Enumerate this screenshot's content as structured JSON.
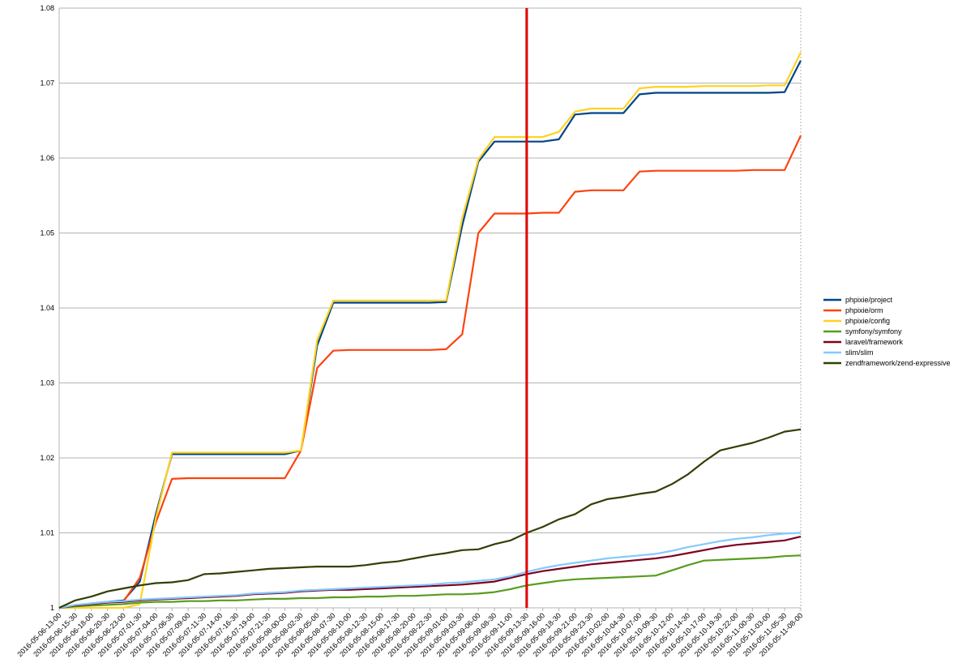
{
  "chart_data": {
    "type": "line",
    "categories": [
      "2016-05-06-13-00",
      "2016-05-06-15-30",
      "2016-05-06-18-00",
      "2016-05-06-20-30",
      "2016-05-06-23-00",
      "2016-05-07-01-30",
      "2016-05-07-04-00",
      "2016-05-07-06-30",
      "2016-05-07-09-00",
      "2016-05-07-11-30",
      "2016-05-07-14-00",
      "2016-05-07-16-30",
      "2016-05-07-19-00",
      "2016-05-07-21-30",
      "2016-05-08-00-00",
      "2016-05-08-02-30",
      "2016-05-08-05-00",
      "2016-05-08-07-30",
      "2016-05-08-10-00",
      "2016-05-08-12-30",
      "2016-05-08-15-00",
      "2016-05-08-17-30",
      "2016-05-08-20-00",
      "2016-05-08-22-30",
      "2016-05-09-01-00",
      "2016-05-09-03-30",
      "2016-05-09-06-00",
      "2016-05-09-08-30",
      "2016-05-09-11-00",
      "2016-05-09-13-30",
      "2016-05-09-16-00",
      "2016-05-09-18-30",
      "2016-05-09-21-00",
      "2016-05-09-23-30",
      "2016-05-10-02-00",
      "2016-05-10-04-30",
      "2016-05-10-07-00",
      "2016-05-10-09-30",
      "2016-05-10-12-00",
      "2016-05-10-14-30",
      "2016-05-10-17-00",
      "2016-05-10-19-30",
      "2016-05-10-22-00",
      "2016-05-11-00-30",
      "2016-05-11-03-00",
      "2016-05-11-05-30",
      "2016-05-11-08-00"
    ],
    "series": [
      {
        "name": "phpixie/project",
        "color": "#004586",
        "values": [
          1,
          1.0003,
          1.0006,
          1.0008,
          1.001,
          1.0035,
          1.0125,
          1.0205,
          1.0205,
          1.0205,
          1.0205,
          1.0205,
          1.0205,
          1.0205,
          1.0205,
          1.021,
          1.035,
          1.0407,
          1.0407,
          1.0407,
          1.0407,
          1.0407,
          1.0407,
          1.0407,
          1.0408,
          1.051,
          1.0595,
          1.0622,
          1.0622,
          1.0622,
          1.0622,
          1.0625,
          1.0658,
          1.066,
          1.066,
          1.066,
          1.0685,
          1.0687,
          1.0687,
          1.0687,
          1.0687,
          1.0687,
          1.0687,
          1.0687,
          1.0687,
          1.0688,
          1.073
        ]
      },
      {
        "name": "phpixie/orm",
        "color": "#ff420e",
        "values": [
          1,
          1.0003,
          1.0005,
          1.0007,
          1.0009,
          1.004,
          1.0114,
          1.0172,
          1.0173,
          1.0173,
          1.0173,
          1.0173,
          1.0173,
          1.0173,
          1.0173,
          1.021,
          1.032,
          1.0343,
          1.0344,
          1.0344,
          1.0344,
          1.0344,
          1.0344,
          1.0344,
          1.0345,
          1.0365,
          1.05,
          1.0526,
          1.0526,
          1.0526,
          1.0527,
          1.0527,
          1.0555,
          1.0557,
          1.0557,
          1.0557,
          1.0582,
          1.0583,
          1.0583,
          1.0583,
          1.0583,
          1.0583,
          1.0583,
          1.0584,
          1.0584,
          1.0584,
          1.063
        ]
      },
      {
        "name": "phpixie/config",
        "color": "#ffd320",
        "values": [
          1,
          1,
          1,
          1,
          1,
          1.0005,
          1.012,
          1.0207,
          1.0207,
          1.0207,
          1.0207,
          1.0207,
          1.0207,
          1.0207,
          1.0207,
          1.021,
          1.0357,
          1.041,
          1.041,
          1.041,
          1.041,
          1.041,
          1.041,
          1.041,
          1.041,
          1.052,
          1.0598,
          1.0628,
          1.0628,
          1.0628,
          1.0628,
          1.0635,
          1.0662,
          1.0666,
          1.0666,
          1.0666,
          1.0693,
          1.0695,
          1.0695,
          1.0695,
          1.0696,
          1.0696,
          1.0696,
          1.0696,
          1.0697,
          1.0697,
          1.0741
        ]
      },
      {
        "name": "symfony/symfony",
        "color": "#579d1c",
        "values": [
          1,
          1.0002,
          1.0003,
          1.0004,
          1.0005,
          1.0007,
          1.0008,
          1.0008,
          1.0009,
          1.0009,
          1.001,
          1.001,
          1.0011,
          1.0012,
          1.0012,
          1.0013,
          1.0013,
          1.0014,
          1.0014,
          1.0015,
          1.0015,
          1.0016,
          1.0016,
          1.0017,
          1.0018,
          1.0018,
          1.0019,
          1.0021,
          1.0025,
          1.003,
          1.0033,
          1.0036,
          1.0038,
          1.0039,
          1.004,
          1.0041,
          1.0042,
          1.0043,
          1.005,
          1.0057,
          1.0063,
          1.0064,
          1.0065,
          1.0066,
          1.0067,
          1.0069,
          1.007
        ]
      },
      {
        "name": "laravel/framework",
        "color": "#7e0021",
        "values": [
          1,
          1.0003,
          1.0005,
          1.0007,
          1.0008,
          1.001,
          1.0011,
          1.0012,
          1.0013,
          1.0014,
          1.0015,
          1.0016,
          1.0018,
          1.0019,
          1.002,
          1.0022,
          1.0023,
          1.0024,
          1.0024,
          1.0025,
          1.0026,
          1.0027,
          1.0028,
          1.0029,
          1.003,
          1.0031,
          1.0033,
          1.0035,
          1.004,
          1.0045,
          1.0049,
          1.0052,
          1.0055,
          1.0058,
          1.006,
          1.0062,
          1.0064,
          1.0066,
          1.0069,
          1.0073,
          1.0077,
          1.0081,
          1.0084,
          1.0086,
          1.0088,
          1.009,
          1.0095
        ]
      },
      {
        "name": "slim/slim",
        "color": "#83caff",
        "values": [
          1,
          1.0004,
          1.0006,
          1.0008,
          1.0009,
          1.0011,
          1.0012,
          1.0013,
          1.0014,
          1.0015,
          1.0016,
          1.0017,
          1.0019,
          1.002,
          1.0021,
          1.0023,
          1.0024,
          1.0025,
          1.0026,
          1.0027,
          1.0028,
          1.0029,
          1.003,
          1.0031,
          1.0033,
          1.0034,
          1.0036,
          1.0038,
          1.0042,
          1.0048,
          1.0053,
          1.0057,
          1.006,
          1.0063,
          1.0066,
          1.0068,
          1.007,
          1.0072,
          1.0076,
          1.0081,
          1.0085,
          1.0089,
          1.0092,
          1.0094,
          1.0097,
          1.0099,
          1.01
        ]
      },
      {
        "name": "zendframework/zend-expressive",
        "color": "#314004",
        "values": [
          1,
          1.001,
          1.0015,
          1.0022,
          1.0026,
          1.003,
          1.0033,
          1.0034,
          1.0037,
          1.0045,
          1.0046,
          1.0048,
          1.005,
          1.0052,
          1.0053,
          1.0054,
          1.0055,
          1.0055,
          1.0055,
          1.0057,
          1.006,
          1.0062,
          1.0066,
          1.007,
          1.0073,
          1.0077,
          1.0078,
          1.0085,
          1.009,
          1.01,
          1.0108,
          1.0118,
          1.0125,
          1.0138,
          1.0145,
          1.0148,
          1.0152,
          1.0155,
          1.0165,
          1.0178,
          1.0195,
          1.021,
          1.0215,
          1.022,
          1.0227,
          1.0235,
          1.0238
        ]
      }
    ],
    "ylim": [
      1,
      1.08
    ],
    "yticks": [
      1,
      1.01,
      1.02,
      1.03,
      1.04,
      1.05,
      1.06,
      1.07,
      1.08
    ],
    "grid": true,
    "legend": "right",
    "vline": {
      "x": "2016-05-09-13-30",
      "color": "#e00000"
    }
  }
}
